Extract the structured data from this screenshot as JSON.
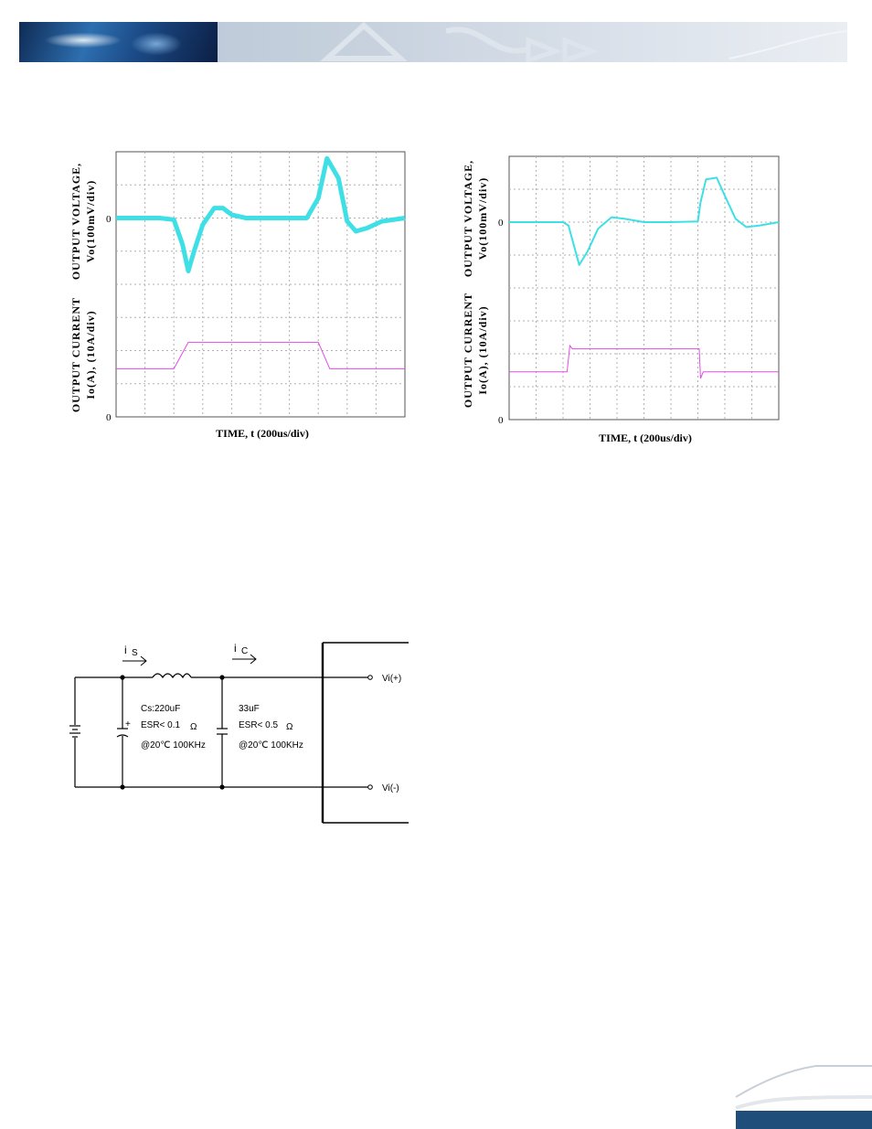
{
  "colors": {
    "voltage_trace": "#3ee0e6",
    "current_trace": "#e24be6",
    "grid": "#b0b0b0",
    "frame": "#555555",
    "banner_blue": "#2a5d99",
    "footer_blue": "#1f4e7a"
  },
  "chart_data": [
    {
      "type": "line",
      "grid_divisions": {
        "x": 10,
        "y": 8
      },
      "ylabel_top": {
        "line1": "OUTPUT VOLTAGE,",
        "line2": "Vo(100mV/div)"
      },
      "ylabel_bottom": {
        "line1": "OUTPUT CURRENT",
        "line2": "Io(A), (10A/div)"
      },
      "xlabel": "TIME, t (200us/div)",
      "zero_labels": {
        "voltage": "0",
        "current": "0"
      },
      "series": [
        {
          "x": [
            0,
            1.5,
            2.0,
            2.3,
            2.5,
            2.7,
            3.0,
            3.4,
            3.7,
            4.0,
            4.5,
            5.0,
            5.5,
            6.0,
            6.6,
            7.0,
            7.3,
            7.7,
            8.0,
            8.3,
            8.7,
            9.2,
            10.0
          ],
          "y": [
            0,
            0,
            -0.05,
            -0.8,
            -1.6,
            -1.0,
            -0.2,
            0.3,
            0.3,
            0.1,
            0,
            0,
            0,
            0,
            0,
            0.6,
            1.8,
            1.2,
            -0.1,
            -0.4,
            -0.3,
            -0.1,
            0
          ]
        },
        {
          "x": [
            0,
            2.0,
            2.5,
            7.0,
            7.4,
            10.0
          ],
          "y": [
            1.45,
            1.45,
            2.25,
            2.25,
            1.45,
            1.45
          ]
        }
      ]
    },
    {
      "type": "line",
      "grid_divisions": {
        "x": 10,
        "y": 8
      },
      "ylabel_top": {
        "line1": "OUTPUT VOLTAGE,",
        "line2": "Vo(100mV/div)"
      },
      "ylabel_bottom": {
        "line1": "OUTPUT CURRENT",
        "line2": "Io(A), (10A/div)"
      },
      "xlabel": "TIME, t (200us/div)",
      "zero_labels": {
        "voltage": "0",
        "current": "0"
      },
      "series": [
        {
          "x": [
            0,
            2.0,
            2.2,
            2.4,
            2.6,
            2.9,
            3.3,
            3.8,
            4.3,
            5.0,
            6.0,
            7.0,
            7.1,
            7.3,
            7.7,
            8.0,
            8.4,
            8.8,
            9.3,
            10.0
          ],
          "y": [
            0,
            0,
            -0.1,
            -0.7,
            -1.3,
            -0.9,
            -0.2,
            0.15,
            0.1,
            0,
            0,
            0.02,
            0.6,
            1.3,
            1.35,
            0.8,
            0.1,
            -0.15,
            -0.1,
            0
          ]
        },
        {
          "x": [
            0,
            2.15,
            2.25,
            2.35,
            7.05,
            7.1,
            7.2,
            10.0
          ],
          "y": [
            1.45,
            1.45,
            2.25,
            2.15,
            2.15,
            1.25,
            1.45,
            1.45
          ]
        }
      ]
    }
  ],
  "circuit": {
    "source_current": {
      "main": "i",
      "sub": "S"
    },
    "cap_current": {
      "main": "i",
      "sub": "C"
    },
    "cs_label": "Cs:220uF",
    "cs_esr": "ESR< 0.1",
    "cs_temp": "@20℃ 100KHz",
    "c2_label": "33uF",
    "c2_esr": "ESR< 0.5",
    "c2_temp": "@20℃ 100KHz",
    "ohm": "Ω",
    "polarity": "+",
    "vi_plus": "Vi(+)",
    "vi_minus": "Vi(-)"
  }
}
